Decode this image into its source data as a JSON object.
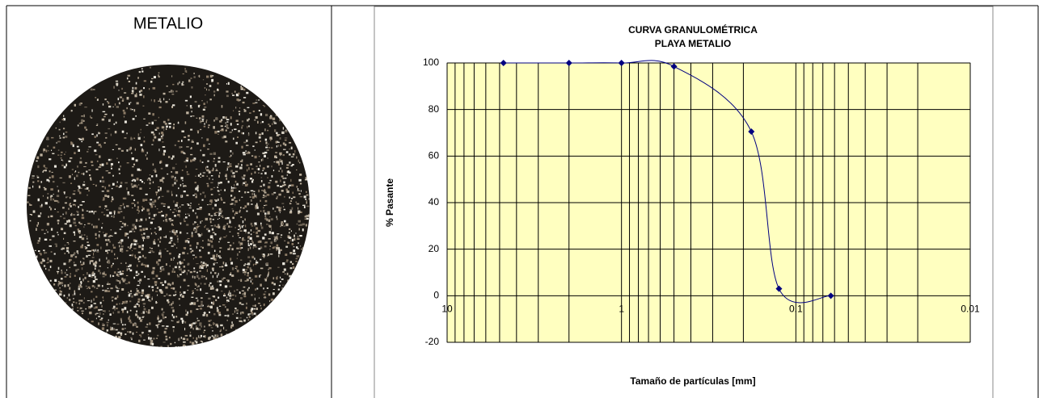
{
  "header": {
    "title": "METALIO"
  },
  "chart_data": {
    "type": "line",
    "title": "CURVA GRANULOMÉTRICA",
    "subtitle": "PLAYA METALIO",
    "x_label": "Tamaño de partículas [mm]",
    "y_label": "% Pasante",
    "x": [
      4.75,
      2,
      1,
      0.5,
      0.18,
      0.125,
      0.063
    ],
    "series": [
      {
        "name": "PLAYA METALIO",
        "color": "#000080",
        "values": [
          100,
          100,
          100,
          98.5,
          70.5,
          3,
          0
        ]
      }
    ],
    "xlim": [
      10,
      0.01
    ],
    "xticks": [
      10,
      1,
      0.1,
      0.01
    ],
    "log_x": true,
    "ylim": [
      -20,
      100
    ],
    "yticks": [
      -20,
      0,
      20,
      40,
      60,
      80,
      100
    ],
    "grid": true,
    "plot_background": "#ffffc0"
  }
}
